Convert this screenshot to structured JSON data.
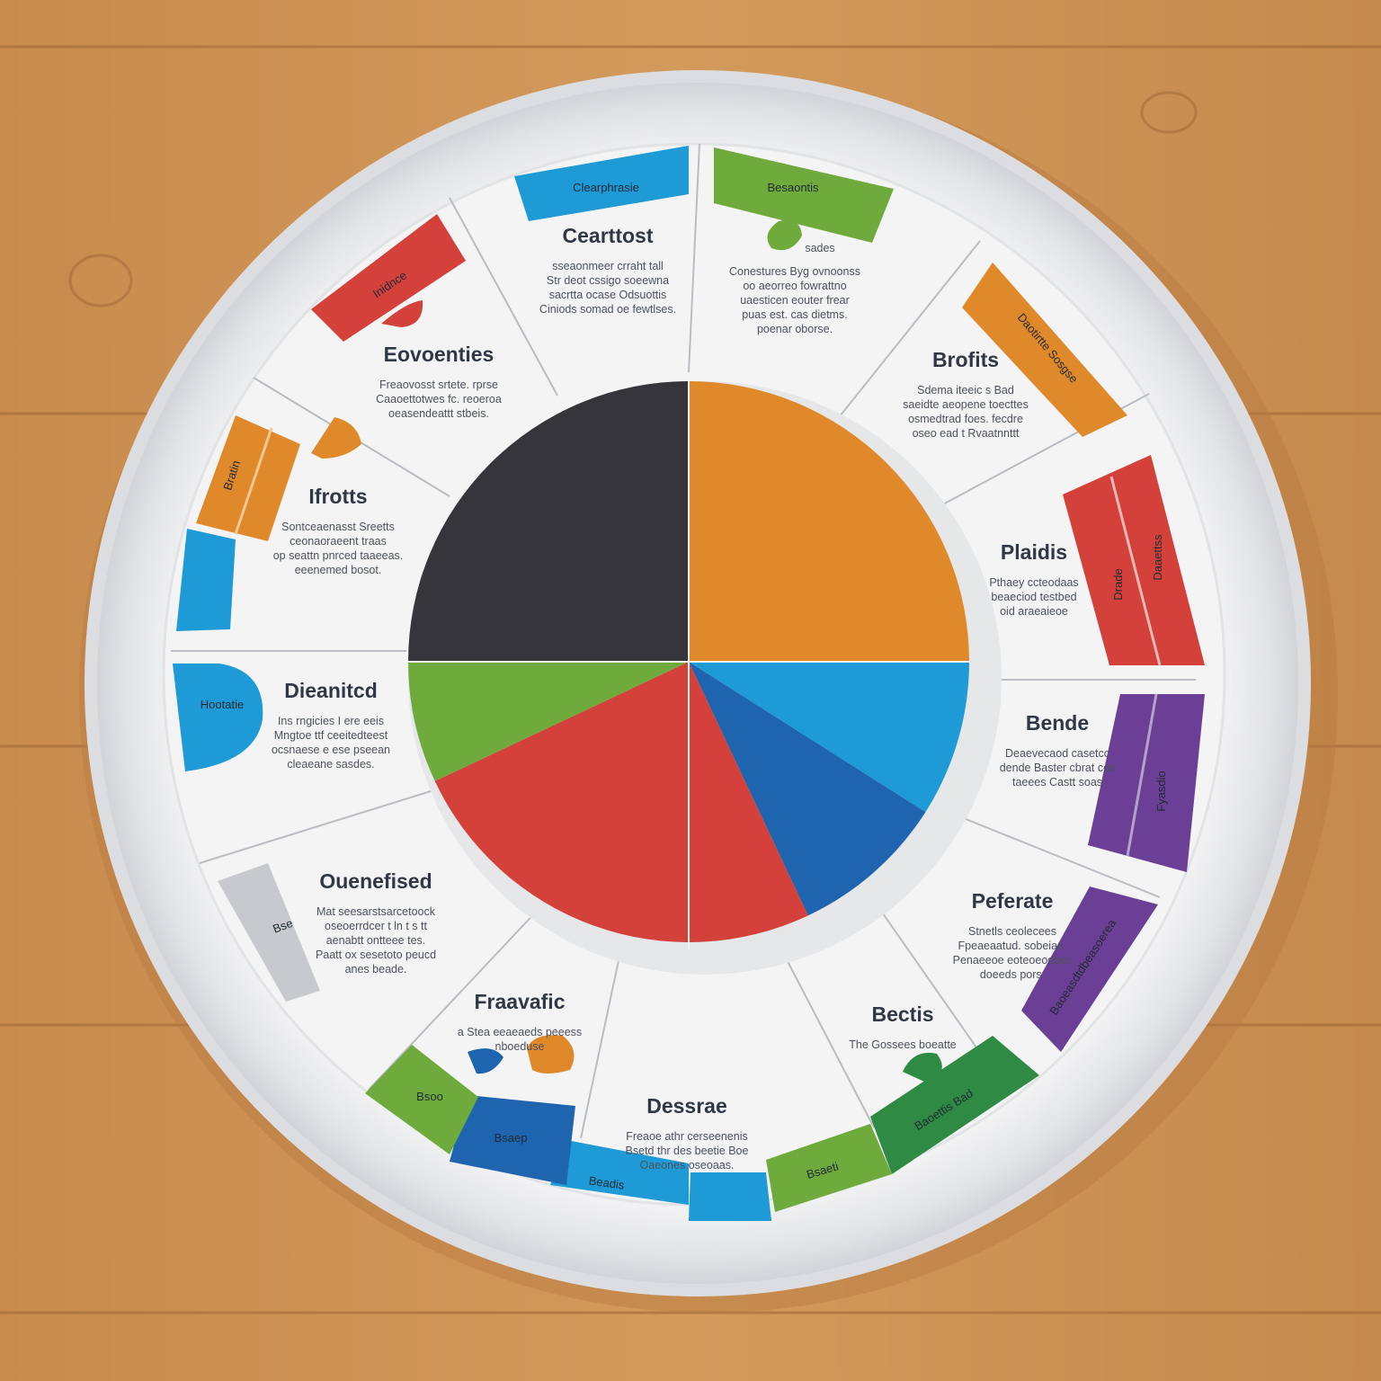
{
  "colors": {
    "wood": "#c98f52",
    "plate": "#f4f4f5",
    "orange": "#e0892b",
    "blue": "#1e9ad6",
    "navy": "#1f64ae",
    "red": "#d3413a",
    "green": "#6fab3c",
    "dark_green": "#2f8a43",
    "purple": "#6b3f95",
    "charcoal": "#35353a",
    "gray": "#c7c9cc"
  },
  "chart_data": {
    "type": "pie",
    "slices": [
      {
        "color": "orange",
        "value": 25
      },
      {
        "color": "blue",
        "value": 9
      },
      {
        "color": "navy",
        "value": 9
      },
      {
        "color": "red",
        "value": 25
      },
      {
        "color": "green",
        "value": 7
      },
      {
        "color": "charcoal",
        "value": 25
      }
    ]
  },
  "sections": [
    {
      "title": "Cearttost",
      "lines": [
        "sseaonmeer crraht tall",
        "Str deot cssigo soeewna",
        "sacrtta ocase Odsuottis",
        "Ciniods somad oe fewtlses."
      ]
    },
    {
      "title": "",
      "lines": [
        "Conestures Byg ovnoonss",
        "oo aeorreo fowrattno",
        "uaesticen eouter frear",
        "puas est. cas dietms.",
        "poenar oborse."
      ]
    },
    {
      "title": "Brofits",
      "lines": [
        "Sdema iteeic s Bad",
        "saeidte aeopene toecttes",
        "osmedtrad foes. fecdre",
        "oseo ead t Rvaatnnttt"
      ]
    },
    {
      "title": "Plaidis",
      "lines": [
        "Pthaey ccteodaas",
        "beaeciod testbed",
        "oid araeaieoe"
      ]
    },
    {
      "title": "Bende",
      "lines": [
        "Deaevecaod casetcc",
        "dende Baster cbrat cos",
        "taeees Castt soas"
      ]
    },
    {
      "title": "Peferate",
      "lines": [
        "Stnetls ceolecees",
        "Fpeaeaatud. sobeiae.",
        "Penaeeoe eoteoeoddes",
        "doeeds pors."
      ]
    },
    {
      "title": "Bectis",
      "lines": [
        "The Gossees boeatte"
      ]
    },
    {
      "title": "Dessrae",
      "lines": [
        "Freaoe athr cerseenenis",
        "Bsetd thr des beetie Boe",
        "Oaeones oseoaas."
      ]
    },
    {
      "title": "Fraavafic",
      "lines": [
        "a Stea eeaeaeds peeess",
        "nboeduse"
      ]
    },
    {
      "title": "Ouenefised",
      "lines": [
        "Mat seesarstsarcetoock",
        "oseoerrdcer t ln t s tt",
        "aenabtt ontteee tes.",
        "Paatt ox sesetoto peucd",
        "anes beade."
      ]
    },
    {
      "title": "Dieanitcd",
      "lines": [
        "Ins rngicies I ere eeis",
        "Mngtoe ttf ceeitedteest",
        "ocsnaese e ese pseean",
        "cleaeane sasdes."
      ]
    },
    {
      "title": "Ifrotts",
      "lines": [
        "Sontceaenasst Sreetts",
        "ceonaoraeent traas",
        "op seattn pnrced taaeeas.",
        "eeenemed bosot."
      ]
    },
    {
      "title": "Eovoenties",
      "lines": [
        "Freaovosst srtete. rprse",
        "Caaoettotwes fc. reoeroa",
        "oeasendeattt stbeis."
      ]
    }
  ],
  "tabs": [
    {
      "label": "Clearphrasie"
    },
    {
      "label": "Besaontis"
    },
    {
      "label": "Daotirtte Sosgse"
    },
    {
      "label": "Daaettss"
    },
    {
      "label": "Drade"
    },
    {
      "label": "Fyasdio"
    },
    {
      "label": "Baoeasdtdbeasoerea"
    },
    {
      "label": "Baoettis Bad"
    },
    {
      "label": "Bsaeti"
    },
    {
      "label": "Beadis"
    },
    {
      "label": "Bsaep"
    },
    {
      "label": "Bsoo"
    },
    {
      "label": "Bse"
    },
    {
      "label": "Hootatie"
    },
    {
      "label": "Bratin"
    },
    {
      "label": "Inidnce"
    },
    {
      "label": "sades"
    }
  ]
}
